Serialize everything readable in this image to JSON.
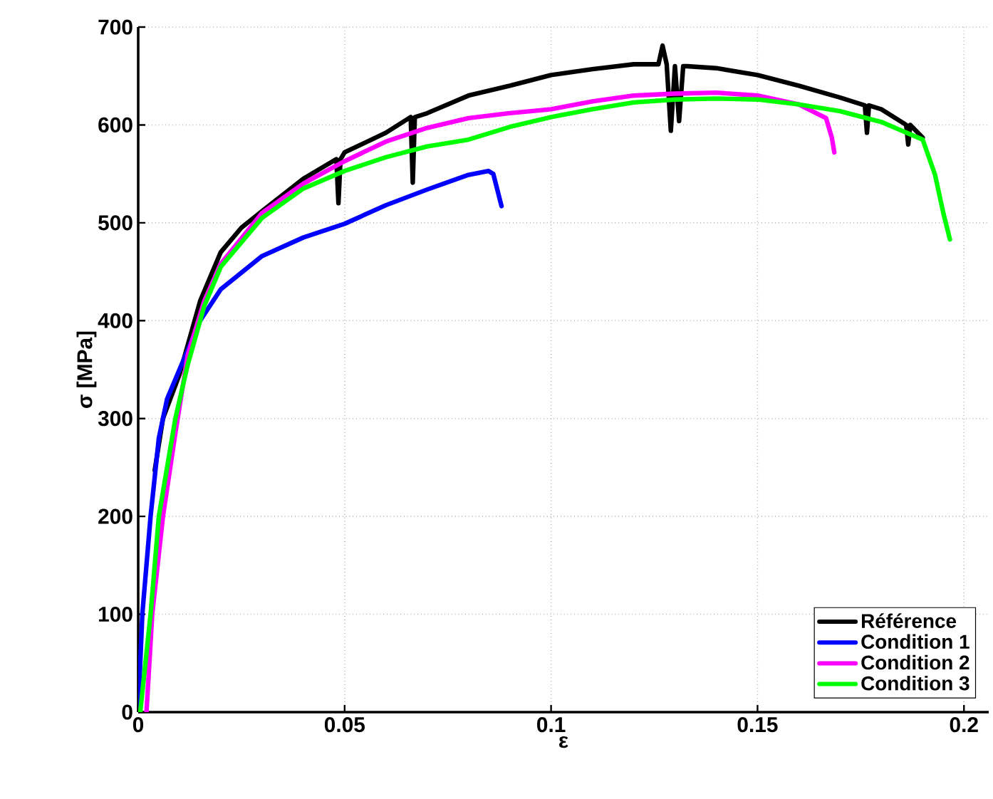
{
  "chart_data": {
    "type": "line",
    "xlabel": "ε",
    "ylabel": "σ [MPa]",
    "xlim": [
      0,
      0.206
    ],
    "ylim": [
      0,
      700
    ],
    "xticks": [
      0,
      0.05,
      0.1,
      0.15,
      0.2
    ],
    "yticks": [
      0,
      100,
      200,
      300,
      400,
      500,
      600,
      700
    ],
    "grid": true,
    "legend": "bottom right",
    "line_style": "solid",
    "marker": "none",
    "series": [
      {
        "name": "Référence",
        "color": "#000000",
        "x": [
          0.004,
          0.006,
          0.01,
          0.015,
          0.02,
          0.025,
          0.03,
          0.04,
          0.048,
          0.0485,
          0.049,
          0.05,
          0.06,
          0.066,
          0.0665,
          0.067,
          0.07,
          0.08,
          0.09,
          0.1,
          0.11,
          0.12,
          0.126,
          0.127,
          0.128,
          0.129,
          0.13,
          0.131,
          0.132,
          0.133,
          0.14,
          0.15,
          0.16,
          0.17,
          0.176,
          0.1765,
          0.177,
          0.18,
          0.186,
          0.1865,
          0.187,
          0.19
        ],
        "values": [
          247,
          300,
          345,
          420,
          470,
          495,
          512,
          545,
          565,
          520,
          565,
          572,
          592,
          608,
          541,
          608,
          612,
          630,
          640,
          651,
          657,
          662,
          662,
          681,
          662,
          594,
          660,
          604,
          660,
          660,
          658,
          651,
          640,
          628,
          620,
          592,
          620,
          616,
          600,
          580,
          600,
          587
        ]
      },
      {
        "name": "Condition 1",
        "color": "#0000ff",
        "x": [
          0,
          0.001,
          0.003,
          0.005,
          0.007,
          0.01,
          0.015,
          0.02,
          0.03,
          0.04,
          0.05,
          0.06,
          0.07,
          0.08,
          0.0848,
          0.086,
          0.088
        ],
        "values": [
          0,
          100,
          200,
          280,
          320,
          350,
          400,
          432,
          466,
          485,
          499,
          518,
          534,
          549,
          553,
          550,
          517
        ]
      },
      {
        "name": "Condition 2",
        "color": "#ff00ff",
        "x": [
          0.002,
          0.0034,
          0.006,
          0.009,
          0.012,
          0.016,
          0.02,
          0.03,
          0.04,
          0.05,
          0.06,
          0.07,
          0.08,
          0.09,
          0.1,
          0.11,
          0.12,
          0.13,
          0.14,
          0.15,
          0.16,
          0.1666,
          0.168,
          0.1686
        ],
        "values": [
          0,
          100,
          200,
          285,
          365,
          420,
          458,
          510,
          540,
          563,
          583,
          597,
          607,
          612,
          616,
          624,
          630,
          632,
          633,
          630,
          621,
          607,
          587,
          572
        ]
      },
      {
        "name": "Condition 3",
        "color": "#00ff00",
        "x": [
          0.0005,
          0.003,
          0.005,
          0.009,
          0.012,
          0.016,
          0.02,
          0.03,
          0.04,
          0.05,
          0.06,
          0.07,
          0.08,
          0.09,
          0.1,
          0.11,
          0.12,
          0.13,
          0.14,
          0.15,
          0.16,
          0.17,
          0.18,
          0.19,
          0.193,
          0.195,
          0.1966
        ],
        "values": [
          0,
          100,
          200,
          300,
          355,
          415,
          455,
          505,
          535,
          553,
          567,
          578,
          585,
          598,
          608,
          616,
          623,
          626,
          627,
          626,
          621,
          614,
          603,
          585,
          549,
          510,
          483
        ]
      }
    ]
  }
}
